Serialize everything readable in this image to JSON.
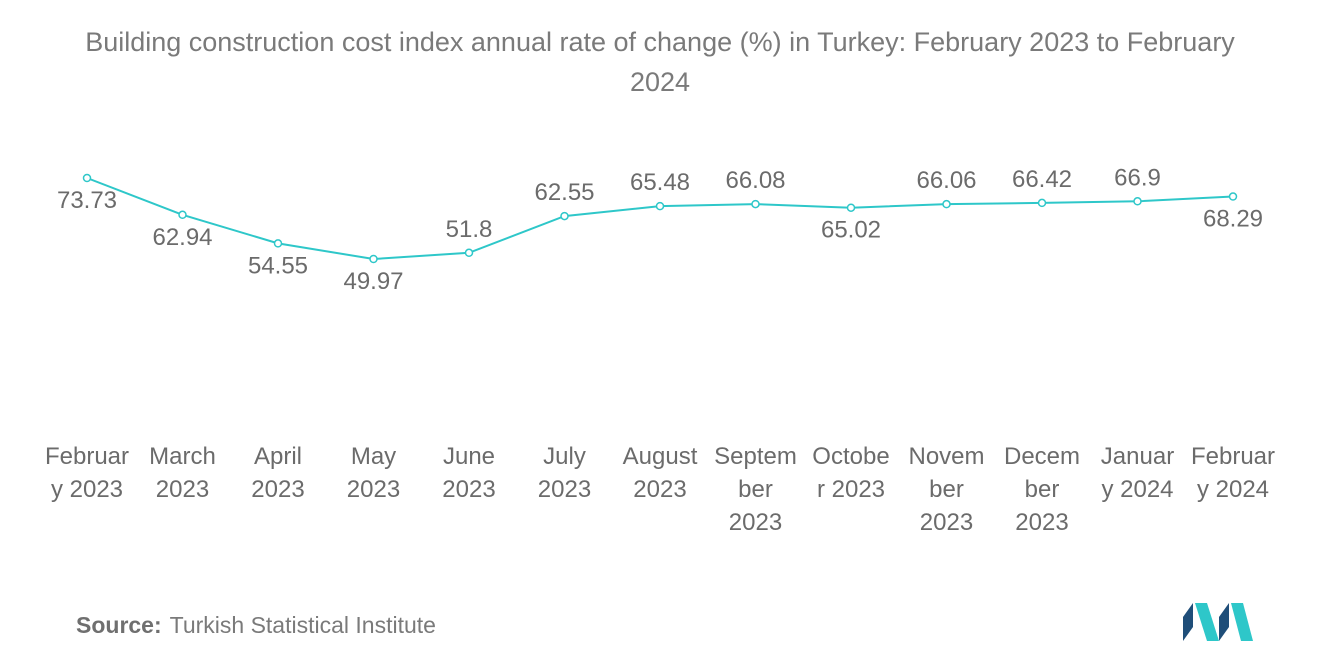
{
  "chart_data": {
    "type": "line",
    "title": "Building construction cost index annual rate of change (%) in Turkey: February 2023 to February 2024",
    "xlabel": "",
    "ylabel": "",
    "categories": [
      [
        "Februar",
        "y 2023"
      ],
      [
        "March",
        "2023"
      ],
      [
        "April",
        "2023"
      ],
      [
        "May",
        "2023"
      ],
      [
        "June",
        "2023"
      ],
      [
        "July",
        "2023"
      ],
      [
        "August",
        "2023"
      ],
      [
        "Septem",
        "ber",
        "2023"
      ],
      [
        "Octobe",
        "r 2023"
      ],
      [
        "Novem",
        "ber",
        "2023"
      ],
      [
        "Decem",
        "ber",
        "2023"
      ],
      [
        "Januar",
        "y 2024"
      ],
      [
        "Februar",
        "y 2024"
      ]
    ],
    "series": [
      {
        "values": [
          73.73,
          62.94,
          54.55,
          49.97,
          51.8,
          62.55,
          65.48,
          66.08,
          65.02,
          66.06,
          66.42,
          66.9,
          68.29
        ],
        "labels": [
          "73.73",
          "62.94",
          "54.55",
          "49.97",
          "51.8",
          "62.55",
          "65.48",
          "66.08",
          "65.02",
          "66.06",
          "66.42",
          "66.9",
          "68.29"
        ],
        "label_positions": [
          "below",
          "below",
          "below",
          "below",
          "above",
          "above",
          "above",
          "above",
          "below",
          "above",
          "above",
          "above",
          "below"
        ]
      }
    ],
    "grid": false,
    "legend": "none"
  },
  "colors": {
    "line": "#2ec7c9",
    "text": "#6b6b6b"
  },
  "source": {
    "label": "Source:",
    "text": "Turkish Statistical Institute"
  },
  "logo": {
    "icon": "mordor-intelligence-logo-icon"
  }
}
